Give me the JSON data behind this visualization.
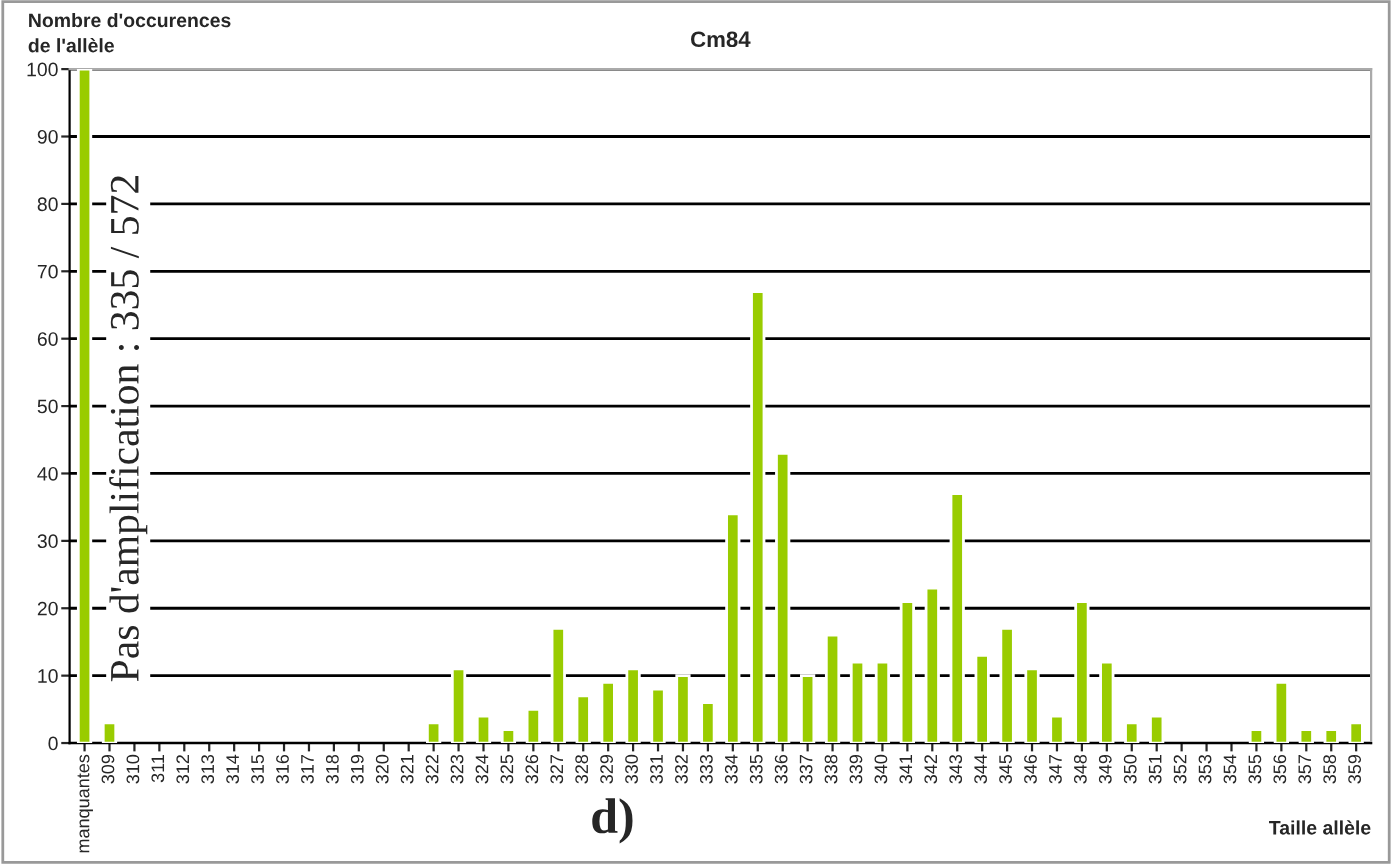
{
  "chart_data": {
    "type": "bar",
    "title": "Cm84",
    "ylabel": "Nombre d'occurences\nde l'allèle",
    "xlabel": "Taille allèle",
    "categories": [
      "manquantes",
      "309",
      "310",
      "311",
      "312",
      "313",
      "314",
      "315",
      "316",
      "317",
      "318",
      "319",
      "320",
      "321",
      "322",
      "323",
      "324",
      "325",
      "326",
      "327",
      "328",
      "329",
      "330",
      "331",
      "332",
      "333",
      "334",
      "335",
      "336",
      "337",
      "338",
      "339",
      "340",
      "341",
      "342",
      "343",
      "344",
      "345",
      "346",
      "347",
      "348",
      "349",
      "350",
      "351",
      "352",
      "353",
      "354",
      "355",
      "356",
      "357",
      "358",
      "359"
    ],
    "values": [
      100,
      3,
      0,
      0,
      0,
      0,
      0,
      0,
      0,
      0,
      0,
      0,
      0,
      0,
      3,
      11,
      4,
      2,
      5,
      17,
      7,
      9,
      11,
      8,
      10,
      6,
      34,
      67,
      43,
      10,
      16,
      12,
      12,
      21,
      23,
      37,
      13,
      17,
      11,
      4,
      21,
      12,
      3,
      4,
      0,
      0,
      0,
      2,
      9,
      2,
      2,
      3
    ],
    "color": "#99cc00",
    "ylim": [
      0,
      100
    ],
    "yticks": [
      0,
      10,
      20,
      30,
      40,
      50,
      60,
      70,
      80,
      90,
      100
    ],
    "grid": "y",
    "annotations": [
      "Pas d'amplification : 335 / 572",
      "d)"
    ]
  }
}
